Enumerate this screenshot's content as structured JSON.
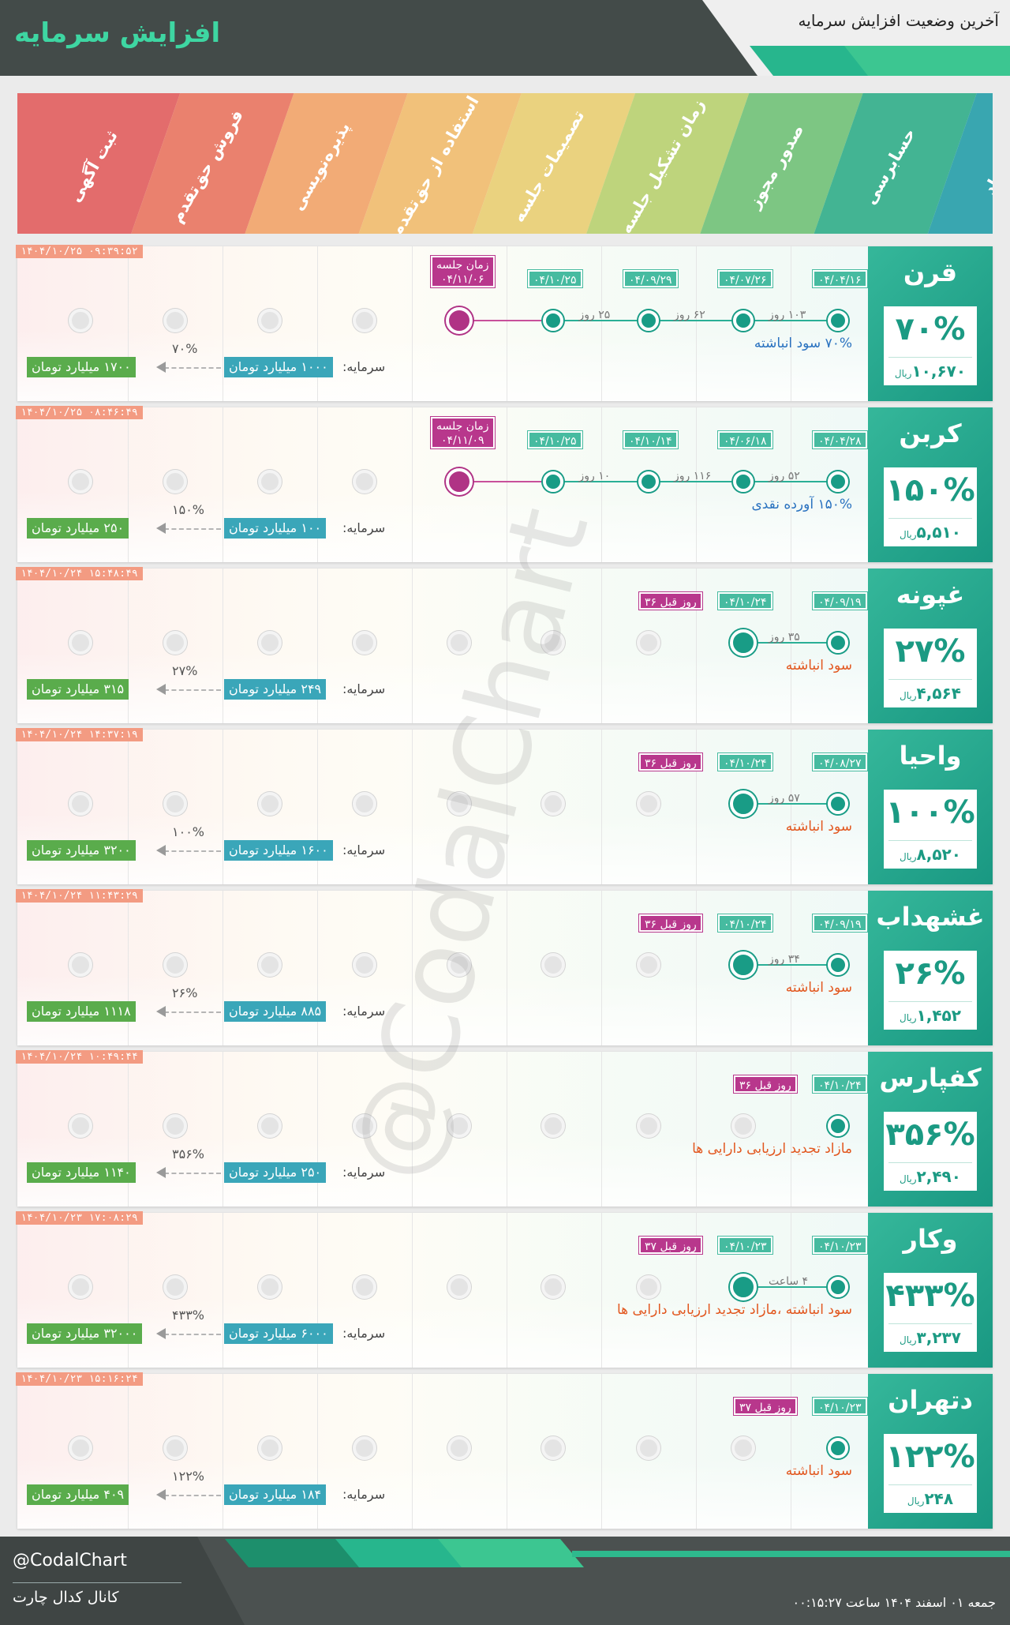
{
  "header": {
    "title": "افزایش سرمایه",
    "subtitle": "آخرین وضعیت افزایش سرمایه"
  },
  "stages": [
    "ثبت آگهی",
    "فروش حق‌تقدم",
    "پذیره‌نویسی",
    "استفاده از حق‌تقدم",
    "تصمیمات جلسه",
    "زمان تشکیل جلسه",
    "صدور مجوز",
    "حسابرسی",
    "پیشنهاد"
  ],
  "stage_colors": [
    "#e05858",
    "#e8705a",
    "#f1a063",
    "#f0b968",
    "#e8cc6e",
    "#b5cf6a",
    "#6bbf72",
    "#2aaa84",
    "#1e9aa5"
  ],
  "capital_label": "سرمایه:",
  "watermark": "@CodalChart",
  "footer": {
    "handle": "@CodalChart",
    "channel": "کانال کدال چارت",
    "date": "جمعه ۰۱ اسفند ۱۴۰۴ ساعت ۰۰:۱۵:۲۷"
  },
  "cards": [
    {
      "symbol": "قرن",
      "percent": "۷۰%",
      "price": "۱۰,۶۷۰",
      "price_unit": "ریال",
      "timestamp": "۱۴۰۴/۱۰/۲۵ ۰۹:۳۹:۵۲",
      "dates": [
        "۰۴/۰۴/۱۶",
        "۰۴/۰۷/۲۶",
        "۰۴/۰۹/۲۹",
        "۰۴/۱۰/۲۵"
      ],
      "days": [
        "۱۰۳ روز",
        "۶۲ روز",
        "۲۵ روز"
      ],
      "meeting_label": "زمان جلسه",
      "meeting_date": "۰۴/۱۱/۰۶",
      "before": "",
      "note": "۷۰% سود انباشته",
      "note_color": "blue",
      "capital": "۱۰۰۰ میلیارد تومان",
      "new_capital": "۱۷۰۰ میلیارد تومان",
      "increase": "۷۰%",
      "progress_stages": 5
    },
    {
      "symbol": "کربن",
      "percent": "۱۵۰%",
      "price": "۵,۵۱۰",
      "price_unit": "ریال",
      "timestamp": "۱۴۰۴/۱۰/۲۵ ۰۸:۴۶:۴۹",
      "dates": [
        "۰۴/۰۴/۲۸",
        "۰۴/۰۶/۱۸",
        "۰۴/۱۰/۱۴",
        "۰۴/۱۰/۲۵"
      ],
      "days": [
        "۵۲ روز",
        "۱۱۶ روز",
        "۱۰ روز"
      ],
      "meeting_label": "زمان جلسه",
      "meeting_date": "۰۴/۱۱/۰۹",
      "before": "",
      "note": "۱۵۰% آورده نقدی",
      "note_color": "blue",
      "capital": "۱۰۰ میلیارد تومان",
      "new_capital": "۲۵۰ میلیارد تومان",
      "increase": "۱۵۰%",
      "progress_stages": 5
    },
    {
      "symbol": "غپونه",
      "percent": "۲۷%",
      "price": "۴,۵۶۴",
      "price_unit": "ریال",
      "timestamp": "۱۴۰۴/۱۰/۲۴ ۱۵:۴۸:۴۹",
      "dates": [
        "۰۴/۰۹/۱۹",
        "۰۴/۱۰/۲۴"
      ],
      "days": [
        "۳۵ روز"
      ],
      "meeting_label": "",
      "meeting_date": "",
      "before": "۳۶ روز قبل",
      "note": "سود انباشته",
      "note_color": "red",
      "capital": "۲۴۹ میلیارد تومان",
      "new_capital": "۳۱۵ میلیارد تومان",
      "increase": "۲۷%",
      "progress_stages": 2
    },
    {
      "symbol": "واحیا",
      "percent": "۱۰۰%",
      "price": "۸,۵۲۰",
      "price_unit": "ریال",
      "timestamp": "۱۴۰۴/۱۰/۲۴ ۱۴:۳۷:۱۹",
      "dates": [
        "۰۴/۰۸/۲۷",
        "۰۴/۱۰/۲۴"
      ],
      "days": [
        "۵۷ روز"
      ],
      "meeting_label": "",
      "meeting_date": "",
      "before": "۳۶ روز قبل",
      "note": "سود انباشته",
      "note_color": "red",
      "capital": "۱۶۰۰ میلیارد تومان",
      "new_capital": "۳۲۰۰ میلیارد تومان",
      "increase": "۱۰۰%",
      "progress_stages": 2
    },
    {
      "symbol": "غشهداب",
      "percent": "۲۶%",
      "price": "۱,۴۵۲",
      "price_unit": "ریال",
      "timestamp": "۱۴۰۴/۱۰/۲۴ ۱۱:۴۳:۲۹",
      "dates": [
        "۰۴/۰۹/۱۹",
        "۰۴/۱۰/۲۴"
      ],
      "days": [
        "۳۴ روز"
      ],
      "meeting_label": "",
      "meeting_date": "",
      "before": "۳۶ روز قبل",
      "note": "سود انباشته",
      "note_color": "red",
      "capital": "۸۸۵ میلیارد تومان",
      "new_capital": "۱۱۱۸ میلیارد تومان",
      "increase": "۲۶%",
      "progress_stages": 2
    },
    {
      "symbol": "کفپارس",
      "percent": "۳۵۶%",
      "price": "۲,۴۹۰",
      "price_unit": "ریال",
      "timestamp": "۱۴۰۴/۱۰/۲۴ ۱۰:۴۹:۴۴",
      "dates": [
        "۰۴/۱۰/۲۴"
      ],
      "days": [],
      "meeting_label": "",
      "meeting_date": "",
      "before": "۳۶ روز قبل",
      "note": "مازاد تجدید ارزیابی دارایی ها",
      "note_color": "red",
      "capital": "۲۵۰ میلیارد تومان",
      "new_capital": "۱۱۴۰ میلیارد تومان",
      "increase": "۳۵۶%",
      "progress_stages": 1
    },
    {
      "symbol": "وکار",
      "percent": "۴۳۳%",
      "price": "۳,۲۳۷",
      "price_unit": "ریال",
      "timestamp": "۱۴۰۴/۱۰/۲۳ ۱۷:۰۸:۲۹",
      "dates": [
        "۰۴/۱۰/۲۳",
        "۰۴/۱۰/۲۳"
      ],
      "days": [
        "۴ ساعت"
      ],
      "meeting_label": "",
      "meeting_date": "",
      "before": "۳۷ روز قبل",
      "note": "سود انباشته ،مازاد تجدید ارزیابی دارایی ها",
      "note_color": "red",
      "capital": "۶۰۰۰ میلیارد تومان",
      "new_capital": "۳۲۰۰۰ میلیارد تومان",
      "increase": "۴۳۳%",
      "progress_stages": 2
    },
    {
      "symbol": "دتهران",
      "percent": "۱۲۲%",
      "price": "۲۴۸",
      "price_unit": "ریال",
      "timestamp": "۱۴۰۴/۱۰/۲۳ ۱۵:۱۶:۲۴",
      "dates": [
        "۰۴/۱۰/۲۳"
      ],
      "days": [],
      "meeting_label": "",
      "meeting_date": "",
      "before": "۳۷ روز قبل",
      "note": "سود انباشته",
      "note_color": "red",
      "capital": "۱۸۴ میلیارد تومان",
      "new_capital": "۴۰۹ میلیارد تومان",
      "increase": "۱۲۲%",
      "progress_stages": 1
    }
  ]
}
